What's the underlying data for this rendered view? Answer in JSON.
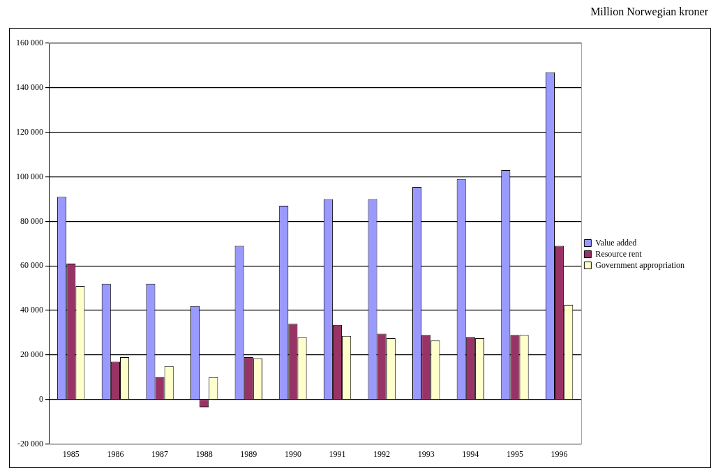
{
  "chart_data": {
    "type": "bar",
    "categories": [
      "1985",
      "1986",
      "1987",
      "1988",
      "1989",
      "1990",
      "1991",
      "1992",
      "1993",
      "1994",
      "1995",
      "1996"
    ],
    "series": [
      {
        "name": "Value added",
        "color": "#9999ff",
        "values": [
          91000,
          52000,
          52000,
          42000,
          69000,
          87000,
          90000,
          90000,
          95500,
          99000,
          103000,
          147000
        ]
      },
      {
        "name": "Resource rent",
        "color": "#993366",
        "values": [
          61000,
          17000,
          10000,
          -3500,
          19000,
          34000,
          33500,
          29500,
          29000,
          28000,
          29000,
          69000
        ]
      },
      {
        "name": "Government appropriation",
        "color": "#ffffcc",
        "values": [
          51000,
          19000,
          15000,
          10000,
          18500,
          28000,
          28500,
          27500,
          26500,
          27500,
          29000,
          42500
        ]
      }
    ],
    "ylim": [
      -20000,
      160000
    ],
    "yticks": [
      {
        "value": -20000,
        "label": "-20 000"
      },
      {
        "value": 0,
        "label": "0"
      },
      {
        "value": 20000,
        "label": "20 000"
      },
      {
        "value": 40000,
        "label": "40 000"
      },
      {
        "value": 60000,
        "label": "60 000"
      },
      {
        "value": 80000,
        "label": "80 000"
      },
      {
        "value": 100000,
        "label": "100 000"
      },
      {
        "value": 120000,
        "label": "120 000"
      },
      {
        "value": 140000,
        "label": "140 000"
      },
      {
        "value": 160000,
        "label": "160 000"
      }
    ],
    "grid": "y",
    "legend": "right",
    "annotations": [
      "Million Norwegian kroner"
    ]
  }
}
